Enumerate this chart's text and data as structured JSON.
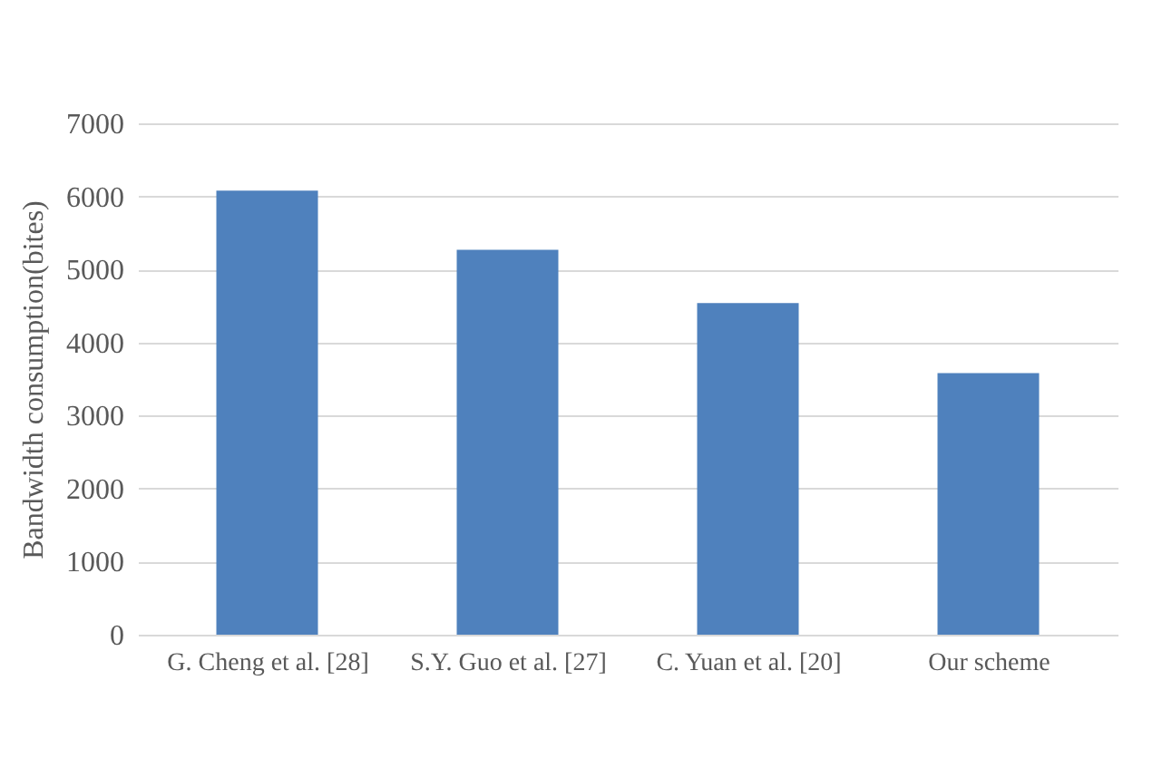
{
  "chart_data": {
    "type": "bar",
    "ylabel": "Bandwidth consumption(bites)",
    "categories": [
      "G. Cheng et al. [28]",
      "S.Y. Guo et al. [27]",
      "C. Yuan et al. [20]",
      "Our scheme"
    ],
    "values": [
      6080,
      5270,
      4540,
      3580
    ],
    "color": "#4f81bd",
    "ylim": [
      0,
      7000
    ],
    "yticks": [
      0,
      1000,
      2000,
      3000,
      4000,
      5000,
      6000,
      7000
    ],
    "grid": "y"
  }
}
